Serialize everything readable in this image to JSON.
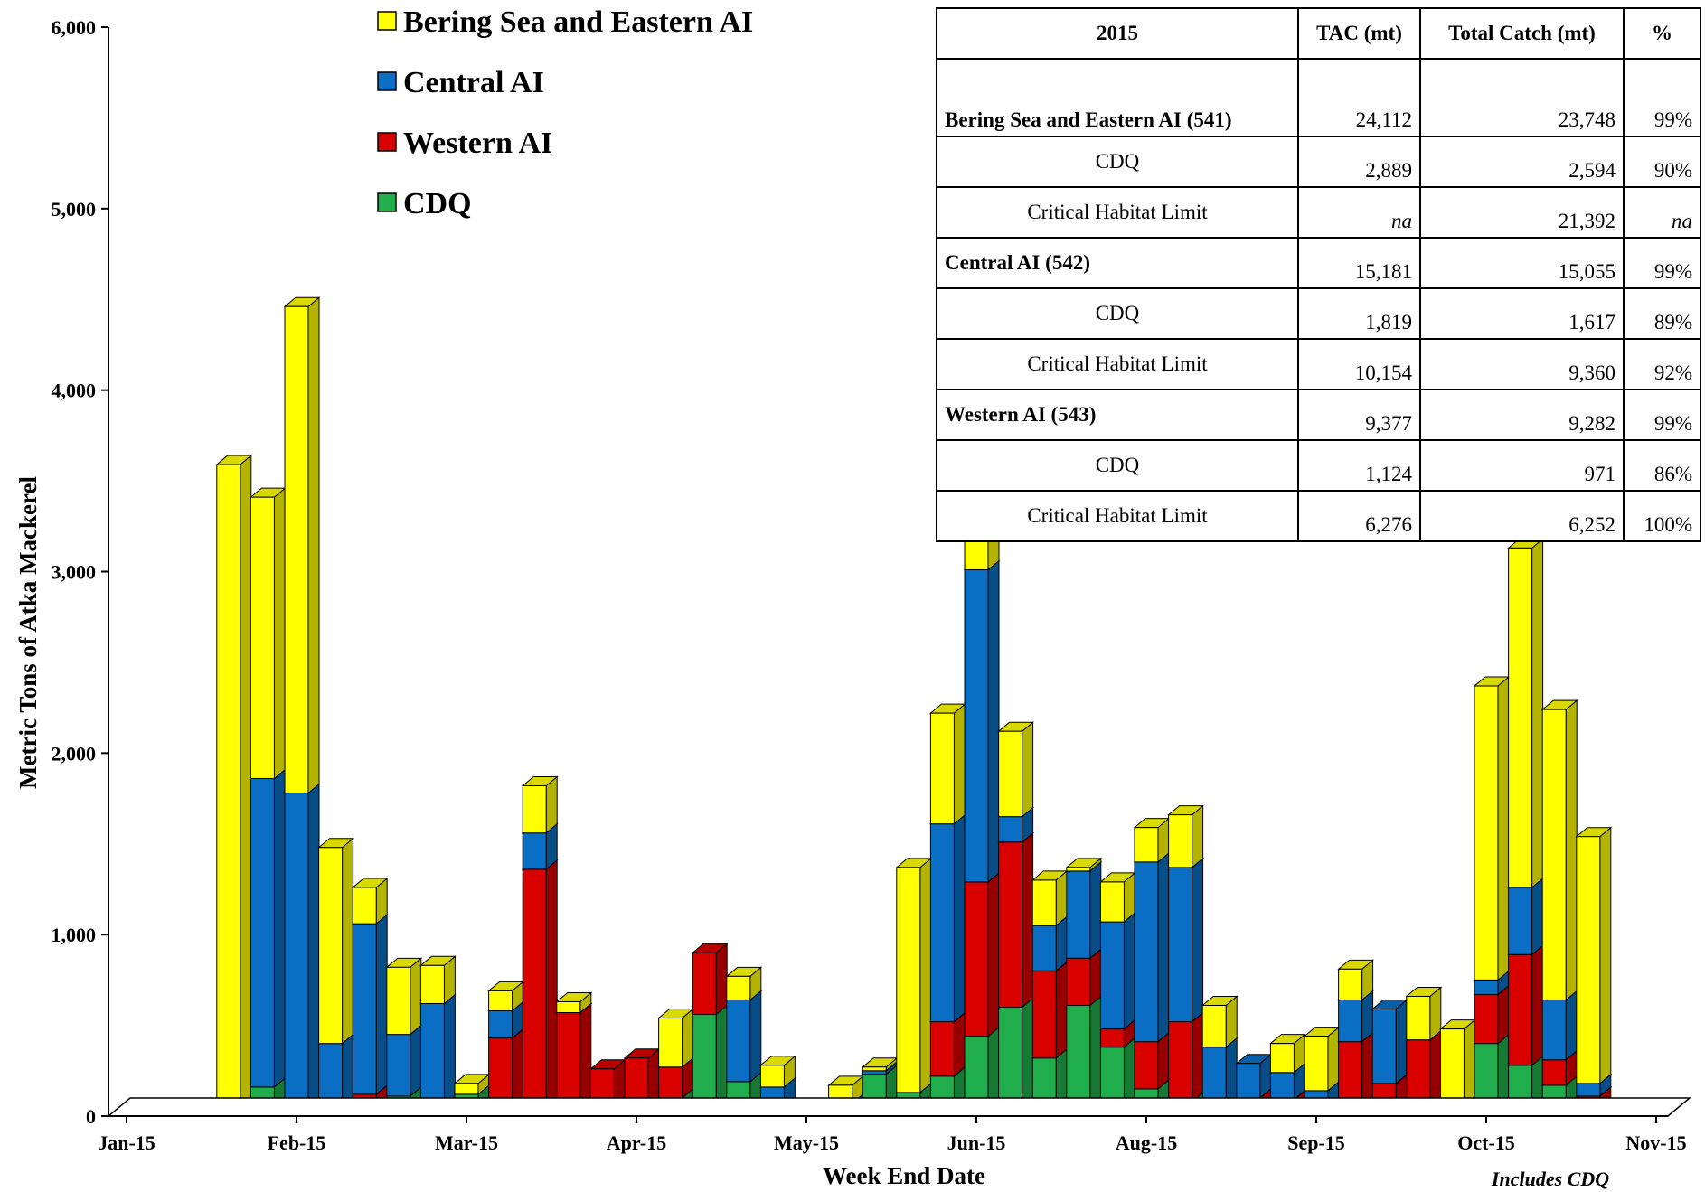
{
  "chart_data": {
    "type": "bar",
    "stacked": true,
    "three_d": true,
    "xlabel": "Week End Date",
    "ylabel": "Metric Tons of Atka Mackerel",
    "ylim": [
      0,
      6000
    ],
    "yticks": [
      0,
      1000,
      2000,
      3000,
      4000,
      5000,
      6000
    ],
    "ytick_labels": [
      "0",
      "1,000",
      "2,000",
      "3,000",
      "4,000",
      "5,000",
      "6,000"
    ],
    "xtick_labels": [
      "Jan-15",
      "Feb-15",
      "Mar-15",
      "Apr-15",
      "May-15",
      "Jun-15",
      "Aug-15",
      "Sep-15",
      "Oct-15",
      "Nov-15"
    ],
    "xtick_week_index": [
      0,
      5,
      10,
      15,
      20,
      25,
      30,
      35,
      40,
      45
    ],
    "note": "Includes CDQ",
    "legend_position": "top-center",
    "series": [
      {
        "name": "CDQ",
        "color": "#1fae4b",
        "values": [
          0,
          0,
          0,
          0,
          160,
          0,
          0,
          0,
          110,
          0,
          120,
          0,
          0,
          0,
          50,
          0,
          100,
          560,
          190,
          0,
          0,
          0,
          230,
          130,
          220,
          440,
          600,
          320,
          610,
          380,
          150,
          80,
          0,
          0,
          0,
          0,
          0,
          0,
          0,
          60,
          400,
          280,
          170,
          30
        ]
      },
      {
        "name": "Western AI",
        "color": "#d90000",
        "values": [
          0,
          0,
          0,
          0,
          0,
          0,
          0,
          120,
          0,
          0,
          0,
          430,
          1360,
          570,
          210,
          320,
          170,
          340,
          0,
          0,
          0,
          30,
          0,
          0,
          300,
          850,
          910,
          480,
          260,
          100,
          260,
          440,
          0,
          100,
          90,
          0,
          410,
          180,
          420,
          0,
          270,
          610,
          140,
          80
        ]
      },
      {
        "name": "Central AI",
        "color": "#0a6fc4",
        "values": [
          30,
          0,
          0,
          0,
          1700,
          1780,
          400,
          940,
          340,
          620,
          0,
          150,
          200,
          0,
          0,
          0,
          0,
          0,
          450,
          160,
          0,
          40,
          20,
          0,
          1090,
          1720,
          140,
          250,
          480,
          590,
          990,
          850,
          380,
          190,
          150,
          140,
          230,
          410,
          0,
          0,
          80,
          370,
          330,
          70
        ]
      },
      {
        "name": "Bering Sea and Eastern AI",
        "color": "#ffff00",
        "values": [
          0,
          0,
          0,
          3590,
          1550,
          2680,
          1080,
          200,
          370,
          210,
          60,
          110,
          260,
          60,
          0,
          0,
          270,
          0,
          130,
          120,
          0,
          100,
          20,
          1240,
          610,
          570,
          470,
          250,
          20,
          220,
          190,
          290,
          230,
          0,
          160,
          300,
          170,
          0,
          240,
          420,
          1620,
          1870,
          1600,
          1360
        ]
      }
    ]
  },
  "legend": [
    {
      "label": "Bering Sea and Eastern AI",
      "color": "#ffff00"
    },
    {
      "label": "Central AI",
      "color": "#0a6fc4"
    },
    {
      "label": "Western AI",
      "color": "#d90000"
    },
    {
      "label": "CDQ",
      "color": "#1fae4b"
    }
  ],
  "table": {
    "headers": [
      "2015",
      "TAC (mt)",
      "Total Catch (mt)",
      "%"
    ],
    "rows": [
      {
        "label": "Bering Sea and Eastern AI (541)",
        "bold": true,
        "tac": "24,112",
        "catch": "23,748",
        "pct": "99%"
      },
      {
        "label": "CDQ",
        "bold": false,
        "tac": "2,889",
        "catch": "2,594",
        "pct": "90%"
      },
      {
        "label": "Critical Habitat Limit",
        "bold": false,
        "tac": "na",
        "catch": "21,392",
        "pct": "na"
      },
      {
        "label": "Central AI (542)",
        "bold": true,
        "tac": "15,181",
        "catch": "15,055",
        "pct": "99%"
      },
      {
        "label": "CDQ",
        "bold": false,
        "tac": "1,819",
        "catch": "1,617",
        "pct": "89%"
      },
      {
        "label": "Critical Habitat Limit",
        "bold": false,
        "tac": "10,154",
        "catch": "9,360",
        "pct": "92%"
      },
      {
        "label": "Western AI (543)",
        "bold": true,
        "tac": "9,377",
        "catch": "9,282",
        "pct": "99%"
      },
      {
        "label": "CDQ",
        "bold": false,
        "tac": "1,124",
        "catch": "971",
        "pct": "86%"
      },
      {
        "label": "Critical Habitat Limit",
        "bold": false,
        "tac": "6,276",
        "catch": "6,252",
        "pct": "100%"
      }
    ]
  }
}
